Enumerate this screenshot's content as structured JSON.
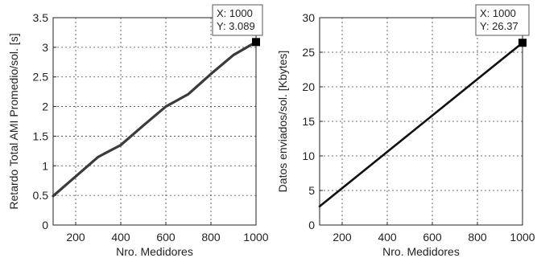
{
  "chart_data": [
    {
      "type": "line",
      "title": "",
      "xlabel": "Nro. Medidores",
      "ylabel": "Retardo Total AMI Promedio/sol. [s]",
      "xlim": [
        100,
        1000
      ],
      "ylim": [
        0,
        3.5
      ],
      "grid": true,
      "xticks": [
        200,
        400,
        600,
        800,
        1000
      ],
      "yticks": [
        0,
        0.5,
        1,
        1.5,
        2,
        2.5,
        3,
        3.5
      ],
      "xtick_labels": [
        "200",
        "400",
        "600",
        "800",
        "1000"
      ],
      "ytick_labels": [
        "0",
        "0.5",
        "1",
        "1.5",
        "2",
        "2.5",
        "3",
        "3.5"
      ],
      "series": [
        {
          "x": [
            100,
            200,
            300,
            400,
            500,
            600,
            700,
            800,
            900,
            1000
          ],
          "y": [
            0.49,
            0.82,
            1.15,
            1.35,
            1.68,
            2.0,
            2.21,
            2.55,
            2.87,
            3.089
          ]
        }
      ],
      "datatip": {
        "x": 1000,
        "y": 3.089,
        "line1": "X: 1000",
        "line2": "Y: 3.089"
      }
    },
    {
      "type": "line",
      "title": "",
      "xlabel": "Nro. Medidores",
      "ylabel": "Datos enviados/sol. [Kbytes]",
      "xlim": [
        100,
        1000
      ],
      "ylim": [
        0,
        30
      ],
      "grid": true,
      "xticks": [
        200,
        400,
        600,
        800,
        1000
      ],
      "yticks": [
        0,
        5,
        10,
        15,
        20,
        25,
        30
      ],
      "xtick_labels": [
        "200",
        "400",
        "600",
        "800",
        "1000"
      ],
      "ytick_labels": [
        "0",
        "5",
        "10",
        "15",
        "20",
        "25",
        "30"
      ],
      "series": [
        {
          "x": [
            100,
            1000
          ],
          "y": [
            2.7,
            26.37
          ]
        }
      ],
      "datatip": {
        "x": 1000,
        "y": 26.37,
        "line1": "X: 1000",
        "line2": "Y: 26.37"
      }
    }
  ]
}
